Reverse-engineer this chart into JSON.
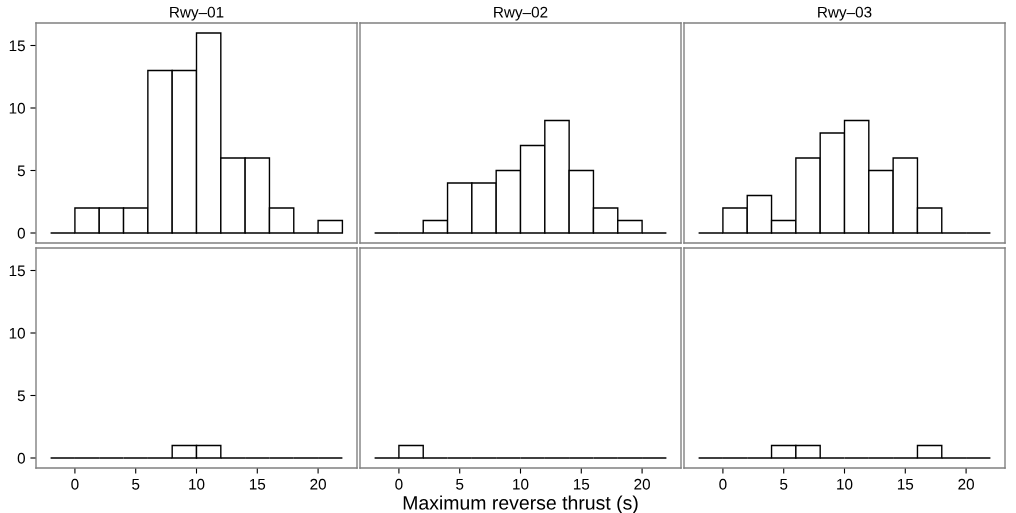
{
  "chart_data": [
    {
      "type": "histogram",
      "title": "Rwy‒01",
      "bins": [
        -2,
        0,
        2,
        4,
        6,
        8,
        10,
        12,
        14,
        16,
        18,
        20,
        22
      ],
      "values": [
        0,
        2,
        2,
        2,
        13,
        13,
        16,
        6,
        6,
        2,
        0,
        1
      ],
      "colors": [
        "#000000",
        "#ffffff",
        "#ffffff",
        "#ffffff",
        "#ffffff",
        "#ffffff",
        "#ffffff",
        "#ffffff",
        "#ffffff",
        "#ffffff",
        "#000000",
        "#ffffff"
      ],
      "xlim": [
        -3.2,
        23.2
      ],
      "xticks": [
        0,
        5,
        10,
        15,
        20
      ],
      "ylim": [
        -0.8,
        16.8
      ],
      "yticks": [
        0,
        5,
        10,
        15
      ],
      "tick_labels": "y"
    },
    {
      "type": "histogram",
      "title": "Rwy‒02",
      "bins": [
        -2,
        0,
        2,
        4,
        6,
        8,
        10,
        12,
        14,
        16,
        18,
        20,
        22
      ],
      "values": [
        0,
        0,
        1,
        4,
        4,
        5,
        7,
        9,
        5,
        2,
        1,
        0
      ],
      "colors": [
        "#000000",
        "#000000",
        "#ffffff",
        "#ffffff",
        "#ffffff",
        "#ffffff",
        "#ffffff",
        "#ffffff",
        "#ffffff",
        "#ffffff",
        "#ffffff",
        "#000000"
      ],
      "xlim": [
        -3.2,
        23.2
      ],
      "xticks": [
        0,
        5,
        10,
        15,
        20
      ],
      "ylim": [
        -0.8,
        16.8
      ],
      "yticks": [
        0,
        5,
        10,
        15
      ],
      "tick_labels": false
    },
    {
      "type": "histogram",
      "title": "Rwy‒03",
      "bins": [
        -2,
        0,
        2,
        4,
        6,
        8,
        10,
        12,
        14,
        16,
        18,
        20,
        22
      ],
      "values": [
        0,
        2,
        3,
        1,
        6,
        8,
        9,
        5,
        6,
        2,
        0,
        0
      ],
      "colors": [
        "#000000",
        "#ffffff",
        "#ffffff",
        "#ffffff",
        "#ffffff",
        "#ffffff",
        "#ffffff",
        "#ffffff",
        "#ffffff",
        "#ffffff",
        "#000000",
        "#000000"
      ],
      "xlim": [
        -3.2,
        23.2
      ],
      "xticks": [
        0,
        5,
        10,
        15,
        20
      ],
      "ylim": [
        -0.8,
        16.8
      ],
      "yticks": [
        0,
        5,
        10,
        15
      ],
      "tick_labels": false
    },
    {
      "type": "histogram",
      "bins": [
        -2,
        0,
        2,
        4,
        6,
        8,
        10,
        12,
        14,
        16,
        18,
        20,
        22
      ],
      "values": [
        0,
        0,
        0,
        0,
        0,
        1,
        1,
        0,
        0,
        0,
        0,
        0
      ],
      "colors": [
        "#000000",
        "#000000",
        "#000000",
        "#000000",
        "#000000",
        "#ffffff",
        "#ffffff",
        "#000000",
        "#000000",
        "#000000",
        "#000000",
        "#000000"
      ],
      "xlim": [
        -3.2,
        23.2
      ],
      "xticks": [
        0,
        5,
        10,
        15,
        20
      ],
      "ylim": [
        -0.8,
        16.8
      ],
      "yticks": [
        0,
        5,
        10,
        15
      ]
    },
    {
      "type": "histogram",
      "xlabel": "Maximum reverse thrust (s)",
      "bins": [
        -2,
        0,
        2,
        4,
        6,
        8,
        10,
        12,
        14,
        16,
        18,
        20,
        22
      ],
      "values": [
        0,
        1,
        0,
        0,
        0,
        0,
        0,
        0,
        0,
        0,
        0,
        0
      ],
      "colors": [
        "#000000",
        "#ffffff",
        "#000000",
        "#000000",
        "#000000",
        "#000000",
        "#000000",
        "#000000",
        "#000000",
        "#000000",
        "#000000",
        "#000000"
      ],
      "xlim": [
        -3.2,
        23.2
      ],
      "xticks": [
        0,
        5,
        10,
        15,
        20
      ],
      "ylim": [
        -0.8,
        16.8
      ],
      "yticks": [
        0,
        5,
        10,
        15
      ],
      "tick_labels": "x"
    },
    {
      "type": "histogram",
      "bins": [
        -2,
        0,
        2,
        4,
        6,
        8,
        10,
        12,
        14,
        16,
        18,
        20,
        22
      ],
      "values": [
        0,
        0,
        0,
        1,
        1,
        0,
        0,
        0,
        0,
        1,
        0,
        0
      ],
      "colors": [
        "#000000",
        "#000000",
        "#000000",
        "#ffffff",
        "#ffffff",
        "#000000",
        "#000000",
        "#000000",
        "#000000",
        "#ffffff",
        "#000000",
        "#000000"
      ],
      "xlim": [
        -3.2,
        23.2
      ],
      "xticks": [
        0,
        5,
        10,
        15,
        20
      ],
      "ylim": [
        -0.8,
        16.8
      ],
      "yticks": [
        0,
        5,
        10,
        15
      ],
      "tick_labels": "x"
    }
  ]
}
